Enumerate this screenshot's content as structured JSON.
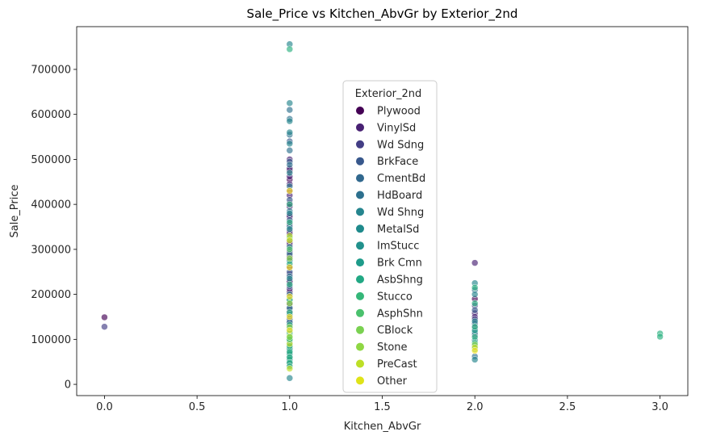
{
  "chart_data": {
    "type": "scatter",
    "title": "Sale_Price vs Kitchen_AbvGr by Exterior_2nd",
    "xlabel": "Kitchen_AbvGr",
    "ylabel": "Sale_Price",
    "xlim": [
      -0.15,
      3.15
    ],
    "ylim": [
      -25000,
      795000
    ],
    "xticks": [
      0.0,
      0.5,
      1.0,
      1.5,
      2.0,
      2.5,
      3.0
    ],
    "xtick_labels": [
      "0.0",
      "0.5",
      "1.0",
      "1.5",
      "2.0",
      "2.5",
      "3.0"
    ],
    "yticks": [
      0,
      100000,
      200000,
      300000,
      400000,
      500000,
      600000,
      700000
    ],
    "ytick_labels": [
      "0",
      "100000",
      "200000",
      "300000",
      "400000",
      "500000",
      "600000",
      "700000"
    ],
    "grid": false,
    "legend": {
      "title": "Exterior_2nd",
      "placement": "center-upper"
    },
    "series": [
      {
        "name": "Plywood",
        "color": "#440154",
        "points": [
          [
            0,
            149000
          ],
          [
            1,
            475000
          ],
          [
            1,
            455000
          ],
          [
            1,
            430000
          ],
          [
            1,
            402000
          ],
          [
            1,
            372000
          ],
          [
            1,
            340000
          ],
          [
            1,
            310000
          ],
          [
            1,
            285000
          ],
          [
            1,
            260000
          ],
          [
            1,
            230000
          ],
          [
            1,
            205000
          ],
          [
            1,
            180000
          ],
          [
            1,
            158000
          ],
          [
            1,
            135000
          ],
          [
            2,
            190000
          ]
        ]
      },
      {
        "name": "VinylSd",
        "color": "#482173",
        "points": [
          [
            1,
            500000
          ],
          [
            1,
            480000
          ],
          [
            1,
            462000
          ],
          [
            1,
            445000
          ],
          [
            1,
            420000
          ],
          [
            1,
            395000
          ],
          [
            1,
            375000
          ],
          [
            1,
            355000
          ],
          [
            1,
            335000
          ],
          [
            1,
            315000
          ],
          [
            1,
            295000
          ],
          [
            1,
            278000
          ],
          [
            1,
            262000
          ],
          [
            1,
            245000
          ],
          [
            1,
            228000
          ],
          [
            1,
            212000
          ],
          [
            1,
            195000
          ],
          [
            1,
            178000
          ],
          [
            1,
            162000
          ],
          [
            1,
            148000
          ],
          [
            1,
            130000
          ],
          [
            2,
            270000
          ],
          [
            2,
            158000
          ],
          [
            2,
            150000
          ]
        ]
      },
      {
        "name": "Wd Sdng",
        "color": "#433e85",
        "points": [
          [
            0,
            128000
          ],
          [
            1,
            168000
          ],
          [
            1,
            152000
          ],
          [
            1,
            140000
          ],
          [
            1,
            125000
          ],
          [
            1,
            110000
          ],
          [
            1,
            95000
          ],
          [
            1,
            82000
          ],
          [
            1,
            70000
          ],
          [
            1,
            58000
          ],
          [
            1,
            45000
          ],
          [
            2,
            175000
          ],
          [
            2,
            145000
          ],
          [
            2,
            125000
          ],
          [
            2,
            110000
          ],
          [
            2,
            85000
          ]
        ]
      },
      {
        "name": "BrkFace",
        "color": "#38588c",
        "points": [
          [
            1,
            540000
          ],
          [
            1,
            495000
          ],
          [
            1,
            410000
          ],
          [
            1,
            365000
          ],
          [
            1,
            320000
          ],
          [
            1,
            250000
          ],
          [
            1,
            218000
          ],
          [
            1,
            185000
          ],
          [
            1,
            145000
          ],
          [
            1,
            118000
          ],
          [
            2,
            165000
          ],
          [
            2,
            135000
          ]
        ]
      },
      {
        "name": "CmentBd",
        "color": "#2d708e",
        "points": [
          [
            1,
            610000
          ],
          [
            1,
            590000
          ],
          [
            1,
            555000
          ],
          [
            1,
            520000
          ],
          [
            1,
            488000
          ],
          [
            1,
            440000
          ],
          [
            1,
            385000
          ],
          [
            1,
            350000
          ],
          [
            1,
            290000
          ],
          [
            1,
            240000
          ],
          [
            1,
            200000
          ],
          [
            1,
            170000
          ],
          [
            1,
            138000
          ],
          [
            2,
            210000
          ],
          [
            2,
            62000
          ]
        ]
      },
      {
        "name": "HdBoard",
        "color": "#25858e",
        "points": [
          [
            1,
            756000
          ],
          [
            1,
            625000
          ],
          [
            1,
            585000
          ],
          [
            1,
            560000
          ],
          [
            1,
            535000
          ],
          [
            1,
            470000
          ],
          [
            1,
            380000
          ],
          [
            1,
            345000
          ],
          [
            1,
            305000
          ],
          [
            1,
            275000
          ],
          [
            1,
            235000
          ],
          [
            1,
            190000
          ],
          [
            1,
            155000
          ],
          [
            1,
            122000
          ],
          [
            1,
            102000
          ],
          [
            1,
            88000
          ],
          [
            1,
            75000
          ],
          [
            1,
            62000
          ],
          [
            1,
            50000
          ],
          [
            1,
            14000
          ],
          [
            2,
            225000
          ],
          [
            2,
            200000
          ],
          [
            2,
            140000
          ],
          [
            2,
            115000
          ],
          [
            2,
            98000
          ],
          [
            2,
            55000
          ]
        ]
      },
      {
        "name": "Wd Shng",
        "color": "#1e9b8a",
        "points": [
          [
            1,
            112000
          ],
          [
            1,
            97000
          ],
          [
            1,
            79000
          ],
          [
            1,
            68000
          ],
          [
            1,
            55000
          ],
          [
            2,
            120000
          ]
        ]
      },
      {
        "name": "MetalSd",
        "color": "#2ab07f",
        "points": [
          [
            1,
            745000
          ],
          [
            1,
            400000
          ],
          [
            1,
            360000
          ],
          [
            1,
            325000
          ],
          [
            1,
            268000
          ],
          [
            1,
            222000
          ],
          [
            1,
            188000
          ],
          [
            1,
            160000
          ],
          [
            1,
            132000
          ],
          [
            1,
            115000
          ],
          [
            1,
            100000
          ],
          [
            1,
            85000
          ],
          [
            1,
            72000
          ],
          [
            1,
            60000
          ],
          [
            1,
            48000
          ],
          [
            1,
            40000
          ],
          [
            2,
            215000
          ],
          [
            2,
            180000
          ],
          [
            2,
            128000
          ],
          [
            2,
            105000
          ],
          [
            2,
            92000
          ],
          [
            2,
            78000
          ],
          [
            3,
            113000
          ],
          [
            3,
            106000
          ]
        ]
      },
      {
        "name": "ImStucc",
        "color": "#52c569",
        "points": [
          [
            1,
            300000
          ]
        ]
      },
      {
        "name": "Brk Cmn",
        "color": "#86d549",
        "points": [
          [
            1,
            127000
          ],
          [
            1,
            108000
          ],
          [
            2,
            88000
          ]
        ]
      },
      {
        "name": "AsbShng",
        "color": "#c2df23",
        "points": [
          [
            1,
            105000
          ],
          [
            1,
            90000
          ],
          [
            1,
            35000
          ],
          [
            2,
            82000
          ]
        ]
      },
      {
        "name": "Stucco",
        "color": "#fde725",
        "points": [
          [
            1,
            430000
          ],
          [
            1,
            260000
          ],
          [
            1,
            195000
          ],
          [
            1,
            150000
          ],
          [
            1,
            120000
          ],
          [
            2,
            75000
          ]
        ]
      },
      {
        "name": "AsphShn",
        "color": "#4ac16d",
        "points": [
          [
            1,
            100000
          ]
        ]
      },
      {
        "name": "CBlock",
        "color": "#7ad151",
        "points": [
          [
            1,
            105000
          ]
        ]
      },
      {
        "name": "Stone",
        "color": "#8fd744",
        "points": [
          [
            1,
            280000
          ],
          [
            1,
            180000
          ]
        ]
      },
      {
        "name": "PreCast",
        "color": "#bddf26",
        "points": [
          [
            1,
            330000
          ]
        ]
      },
      {
        "name": "Other",
        "color": "#dfe318",
        "points": [
          [
            1,
            320000
          ]
        ]
      }
    ]
  },
  "legend_colors": [
    "#440154",
    "#482173",
    "#433e85",
    "#38588c",
    "#31688e",
    "#2d708e",
    "#25858e",
    "#1f8a8c",
    "#21918c",
    "#1e9b8a",
    "#22a884",
    "#35b779",
    "#4ac16d",
    "#7ad151",
    "#8fd744",
    "#bddf26",
    "#dfe318"
  ]
}
